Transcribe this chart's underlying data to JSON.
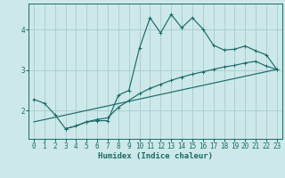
{
  "xlabel": "Humidex (Indice chaleur)",
  "bg_color": "#cce8e8",
  "grid_color": "#aacccc",
  "line_color": "#1a6b6b",
  "xlim": [
    -0.5,
    23.5
  ],
  "ylim": [
    1.3,
    4.65
  ],
  "x_ticks": [
    0,
    1,
    2,
    3,
    4,
    5,
    6,
    7,
    8,
    9,
    10,
    11,
    12,
    13,
    14,
    15,
    16,
    17,
    18,
    19,
    20,
    21,
    22,
    23
  ],
  "y_ticks": [
    2,
    3,
    4
  ],
  "curve1_x": [
    0,
    1,
    2,
    3,
    4,
    5,
    6,
    7,
    8,
    9,
    10,
    11,
    12,
    13,
    14,
    15,
    16,
    17,
    18,
    19,
    20,
    21,
    22,
    23
  ],
  "curve1_y": [
    2.28,
    2.18,
    1.9,
    1.55,
    1.62,
    1.72,
    1.75,
    1.75,
    2.38,
    2.5,
    3.55,
    4.3,
    3.92,
    4.38,
    4.05,
    4.3,
    4.02,
    3.62,
    3.5,
    3.52,
    3.6,
    3.48,
    3.38,
    3.02
  ],
  "curve2_x": [
    3,
    4,
    5,
    6,
    7,
    8,
    9,
    10,
    11,
    12,
    13,
    14,
    15,
    16,
    17,
    18,
    19,
    20,
    21,
    22,
    23
  ],
  "curve2_y": [
    1.55,
    1.62,
    1.72,
    1.78,
    1.82,
    2.08,
    2.25,
    2.42,
    2.55,
    2.65,
    2.75,
    2.83,
    2.9,
    2.96,
    3.02,
    3.08,
    3.12,
    3.18,
    3.22,
    3.1,
    3.02
  ],
  "curve3_x": [
    0,
    23
  ],
  "curve3_y": [
    1.72,
    3.02
  ]
}
